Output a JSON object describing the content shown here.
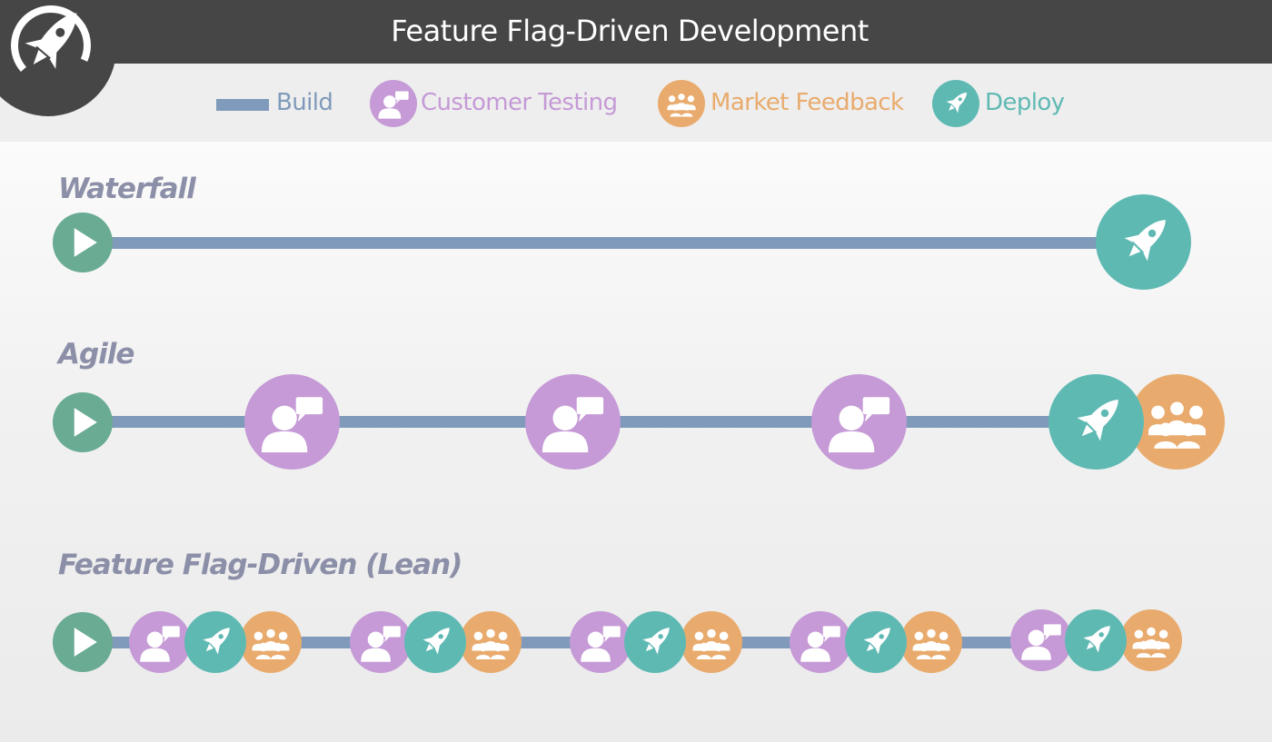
{
  "header": {
    "title": "Feature Flag-Driven Development",
    "logo_icon": "rocket-logo-icon"
  },
  "legend": {
    "build": {
      "label": "Build",
      "color": "#7f9aba"
    },
    "customer_testing": {
      "label": "Customer Testing",
      "color": "#c59ad6",
      "icon": "customer-chat-icon"
    },
    "market_feedback": {
      "label": "Market Feedback",
      "color": "#e9ab6d",
      "icon": "crowd-icon"
    },
    "deploy": {
      "label": "Deploy",
      "color": "#5fb9b3",
      "icon": "rocket-icon"
    }
  },
  "rows": {
    "waterfall": {
      "title": "Waterfall",
      "sequence": [
        "start",
        "build",
        "deploy"
      ]
    },
    "agile": {
      "title": "Agile",
      "sequence": [
        "start",
        "build",
        "customer_testing",
        "build",
        "customer_testing",
        "build",
        "customer_testing",
        "build",
        "deploy",
        "market_feedback"
      ]
    },
    "lean": {
      "title": "Feature Flag-Driven (Lean)",
      "sequence": [
        "start",
        "build",
        "customer_testing",
        "deploy",
        "market_feedback",
        "build",
        "customer_testing",
        "deploy",
        "market_feedback",
        "build",
        "customer_testing",
        "deploy",
        "market_feedback",
        "build",
        "customer_testing",
        "deploy",
        "market_feedback",
        "build",
        "customer_testing",
        "deploy",
        "market_feedback"
      ]
    }
  },
  "colors": {
    "header_bg": "#464646",
    "start": "#6aab93",
    "build": "#7f9aba",
    "customer_testing": "#c59ad6",
    "market_feedback": "#e9ab6d",
    "deploy": "#5fb9b3",
    "row_title": "#8c8fa8"
  }
}
